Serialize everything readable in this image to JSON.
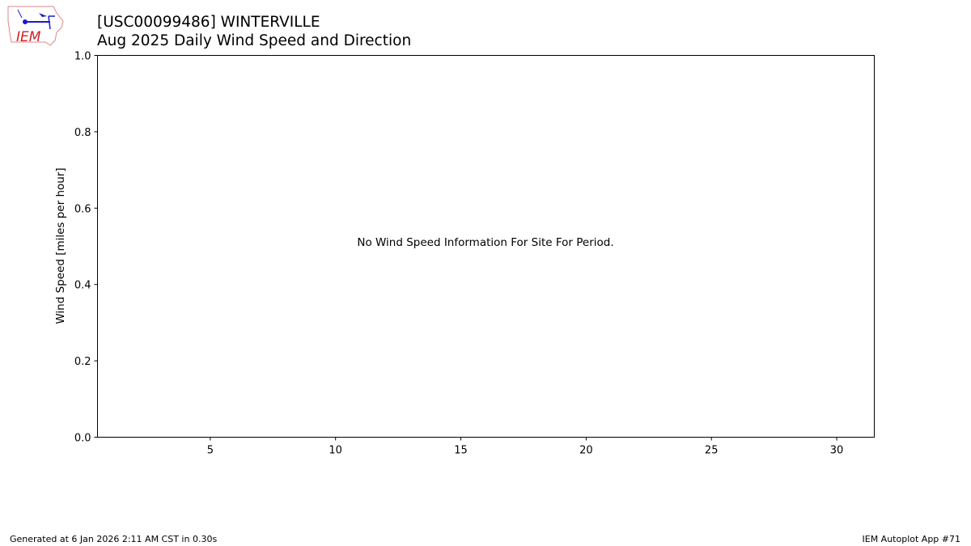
{
  "header": {
    "logo_text": "IEM",
    "title_line1": "[USC00099486] WINTERVILLE",
    "title_line2": "Aug 2025 Daily Wind Speed and Direction"
  },
  "chart_data": {
    "type": "bar",
    "title": "Aug 2025 Daily Wind Speed and Direction",
    "xlabel": "",
    "ylabel": "Wind Speed [miles per hour]",
    "xlim": [
      0.5,
      31.5
    ],
    "ylim": [
      0,
      1
    ],
    "xticks": [
      5,
      10,
      15,
      20,
      25,
      30
    ],
    "yticks": [
      0.0,
      0.2,
      0.4,
      0.6,
      0.8,
      1.0
    ],
    "series": [],
    "grid": false,
    "annotation": "No Wind Speed Information For Site For Period."
  },
  "footer": {
    "generated": "Generated at 6 Jan 2026 2:11 AM CST in 0.30s",
    "app": "IEM Autoplot App #71"
  }
}
